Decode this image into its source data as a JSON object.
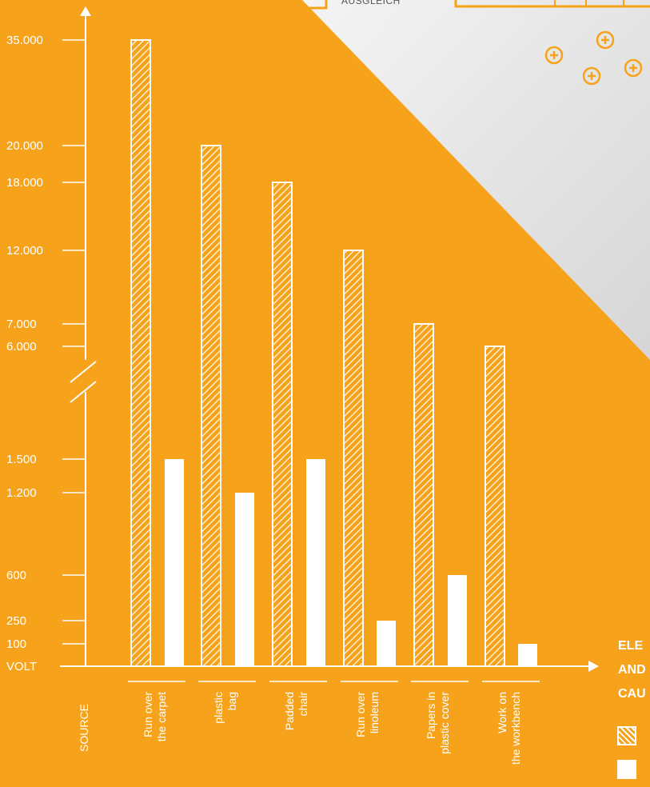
{
  "header": {
    "fragment_label": "AUSGLEICH"
  },
  "legend": {
    "title_lines": [
      "ELE",
      "AND",
      "CAU"
    ]
  },
  "colors": {
    "background": "#f7a21b",
    "panel": "#ececec",
    "marks": "#ffffff"
  },
  "icons": [
    "plus-circle-icon",
    "plus-circle-icon",
    "plus-circle-icon",
    "plus-circle-icon"
  ],
  "chart_data": {
    "type": "bar",
    "x_axis_title": "SOURCE",
    "y_axis_title": "VOLT",
    "y_scale": "broken axis between 1.500 and 6.000",
    "y_ticks": [
      "35.000",
      "20.000",
      "18.000",
      "12.000",
      "7.000",
      "6.000",
      "1.500",
      "1.200",
      "600",
      "250",
      "100"
    ],
    "categories": [
      [
        "Run over",
        "the carpet"
      ],
      [
        "plastic",
        "bag"
      ],
      [
        "Padded",
        "chair"
      ],
      [
        "Run over",
        "linoleum"
      ],
      [
        "Papers in",
        "plastic cover"
      ],
      [
        "Work on",
        "the workbench"
      ]
    ],
    "series": [
      {
        "pattern": "hatched",
        "values": [
          35000,
          20000,
          18000,
          12000,
          7000,
          6000
        ]
      },
      {
        "pattern": "solid",
        "values": [
          1500,
          1200,
          1500,
          250,
          600,
          100
        ]
      }
    ]
  }
}
